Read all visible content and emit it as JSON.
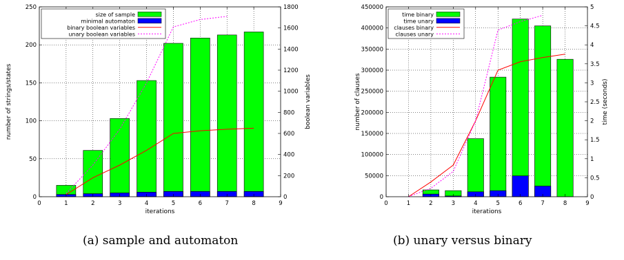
{
  "captions": {
    "a": "(a) sample and automaton",
    "b": "(b) unary versus binary"
  },
  "colors": {
    "bar_green": "#00ff00",
    "bar_blue": "#0000ff",
    "bar_outline": "#000000",
    "line_red": "#ff0000",
    "line_magenta": "#ff00ff"
  },
  "chart_data": [
    {
      "type": "bar",
      "title": "",
      "xlabel": "iterations",
      "ylabel": "number of strings/states",
      "y2label": "boolean variables",
      "xlim": [
        0,
        9
      ],
      "ylim": [
        0,
        250
      ],
      "y2lim": [
        0,
        1800
      ],
      "xticks": [
        0,
        1,
        2,
        3,
        4,
        5,
        6,
        7,
        8,
        9
      ],
      "yticks": [
        0,
        50,
        100,
        150,
        200,
        250
      ],
      "y2ticks": [
        0,
        200,
        400,
        600,
        800,
        1000,
        1200,
        1400,
        1600,
        1800
      ],
      "grid": true,
      "legend_position": "top-left",
      "x": [
        1,
        2,
        3,
        4,
        5,
        6,
        7,
        8
      ],
      "series": [
        {
          "name": "size of sample",
          "kind": "bar",
          "axis": "left",
          "color": "#00ff00",
          "values": [
            15,
            61,
            103,
            153,
            202,
            209,
            213,
            217
          ]
        },
        {
          "name": "minimal automaton",
          "kind": "bar",
          "axis": "left",
          "color": "#0000ff",
          "values": [
            3,
            4,
            5,
            6,
            7,
            7,
            7,
            7
          ]
        },
        {
          "name": "binary boolean variables",
          "kind": "line",
          "axis": "right",
          "color": "#ff0000",
          "values": [
            20,
            180,
            300,
            440,
            600,
            625,
            640,
            650
          ]
        },
        {
          "name": "unary boolean variables",
          "kind": "line",
          "axis": "right",
          "color": "#ff00ff",
          "dashed": true,
          "values": [
            30,
            300,
            640,
            1080,
            1610,
            1680,
            1710,
            null
          ]
        }
      ]
    },
    {
      "type": "bar",
      "title": "",
      "xlabel": "iterations",
      "ylabel": "number of clauses",
      "y2label": "time (seconds)",
      "xlim": [
        0,
        9
      ],
      "ylim": [
        0,
        450000
      ],
      "y2lim": [
        0,
        5
      ],
      "xticks": [
        0,
        1,
        2,
        3,
        4,
        5,
        6,
        7,
        8,
        9
      ],
      "yticks": [
        0,
        50000,
        100000,
        150000,
        200000,
        250000,
        300000,
        350000,
        400000,
        450000
      ],
      "y2ticks": [
        0,
        0.5,
        1,
        1.5,
        2,
        2.5,
        3,
        3.5,
        4,
        4.5,
        5
      ],
      "grid": true,
      "legend_position": "top-left",
      "x": [
        1,
        2,
        3,
        4,
        5,
        6,
        7,
        8
      ],
      "series": [
        {
          "name": "time binary",
          "kind": "bar",
          "axis": "right",
          "color": "#00ff00",
          "values": [
            0,
            0.18,
            0.16,
            1.53,
            3.15,
            4.68,
            4.5,
            3.62
          ]
        },
        {
          "name": "time unary",
          "kind": "bar",
          "axis": "right",
          "color": "#0000ff",
          "values": [
            0,
            0.07,
            0.02,
            0.13,
            0.16,
            0.55,
            0.28,
            0
          ]
        },
        {
          "name": "clauses binary",
          "kind": "line",
          "axis": "left",
          "color": "#ff0000",
          "values": [
            0,
            35000,
            75000,
            180000,
            300000,
            320000,
            330000,
            338000
          ]
        },
        {
          "name": "clauses unary",
          "kind": "line",
          "axis": "left",
          "color": "#ff00ff",
          "dashed": true,
          "values": [
            0,
            20000,
            60000,
            180000,
            395000,
            415000,
            430000,
            null
          ]
        }
      ]
    }
  ]
}
